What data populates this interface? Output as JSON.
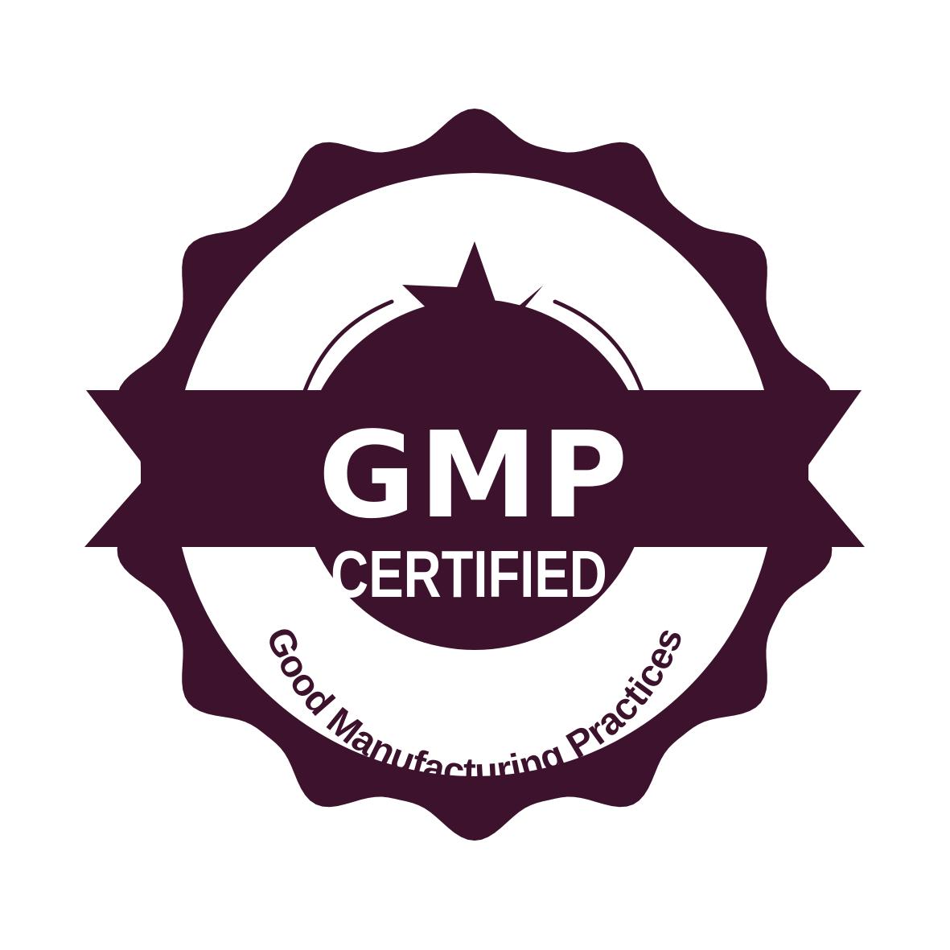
{
  "badge": {
    "title": "GMP",
    "subtitle": "CERTIFIED",
    "arc_text": "Good Manufacturing Practices",
    "icon": "star-icon"
  },
  "colors": {
    "primary": "#3c122c",
    "background": "#ffffff"
  }
}
